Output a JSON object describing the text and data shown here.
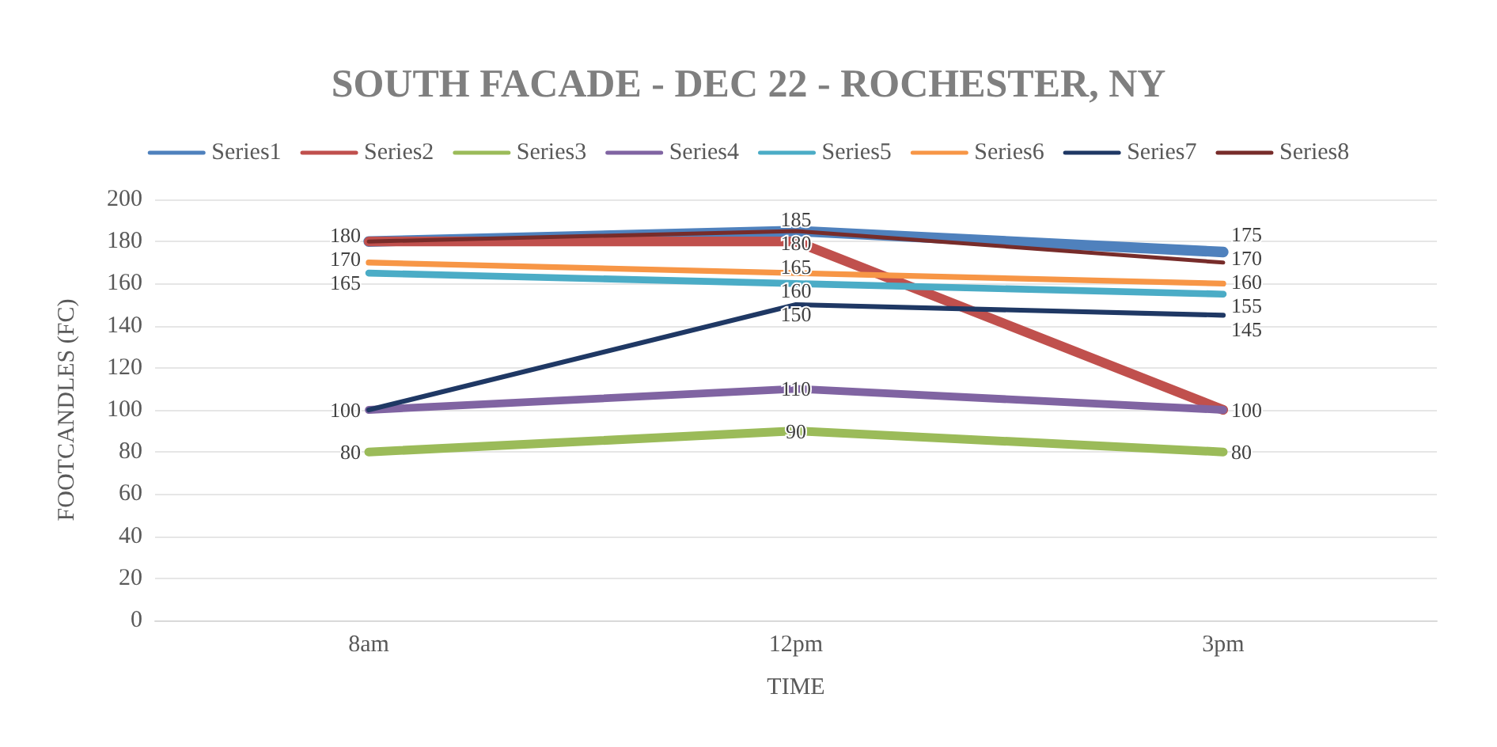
{
  "chart_data": {
    "type": "line",
    "title": "SOUTH FACADE - DEC 22 - ROCHESTER, NY",
    "xlabel": "TIME",
    "ylabel": "FOOTCANDLES (FC)",
    "categories": [
      "8am",
      "12pm",
      "3pm"
    ],
    "series": [
      {
        "name": "Series1",
        "color": "#4f81bd",
        "values": [
          180,
          185,
          175
        ]
      },
      {
        "name": "Series2",
        "color": "#c0504d",
        "values": [
          180,
          180,
          100
        ],
        "value_labels": [
          null,
          "180",
          null
        ]
      },
      {
        "name": "Series3",
        "color": "#9bbb59",
        "values": [
          80,
          90,
          80
        ]
      },
      {
        "name": "Series4",
        "color": "#8064a2",
        "values": [
          100,
          110,
          100
        ]
      },
      {
        "name": "Series5",
        "color": "#4bacc6",
        "values": [
          165,
          160,
          155
        ]
      },
      {
        "name": "Series6",
        "color": "#f79646",
        "values": [
          170,
          165,
          160
        ]
      },
      {
        "name": "Series7",
        "color": "#1f3864",
        "values": [
          100,
          150,
          145
        ],
        "value_labels": [
          null,
          "150",
          "145"
        ]
      },
      {
        "name": "Series8",
        "color": "#772c2a",
        "values": [
          180,
          185,
          170
        ],
        "value_labels": [
          null,
          null,
          "170"
        ]
      }
    ],
    "ylim": [
      0,
      200
    ],
    "yticks": [
      0,
      20,
      40,
      60,
      80,
      100,
      120,
      140,
      160,
      180,
      200
    ],
    "grid": "y",
    "legend": "top",
    "marker": "none",
    "line_style": "solid",
    "data_labels": true
  }
}
